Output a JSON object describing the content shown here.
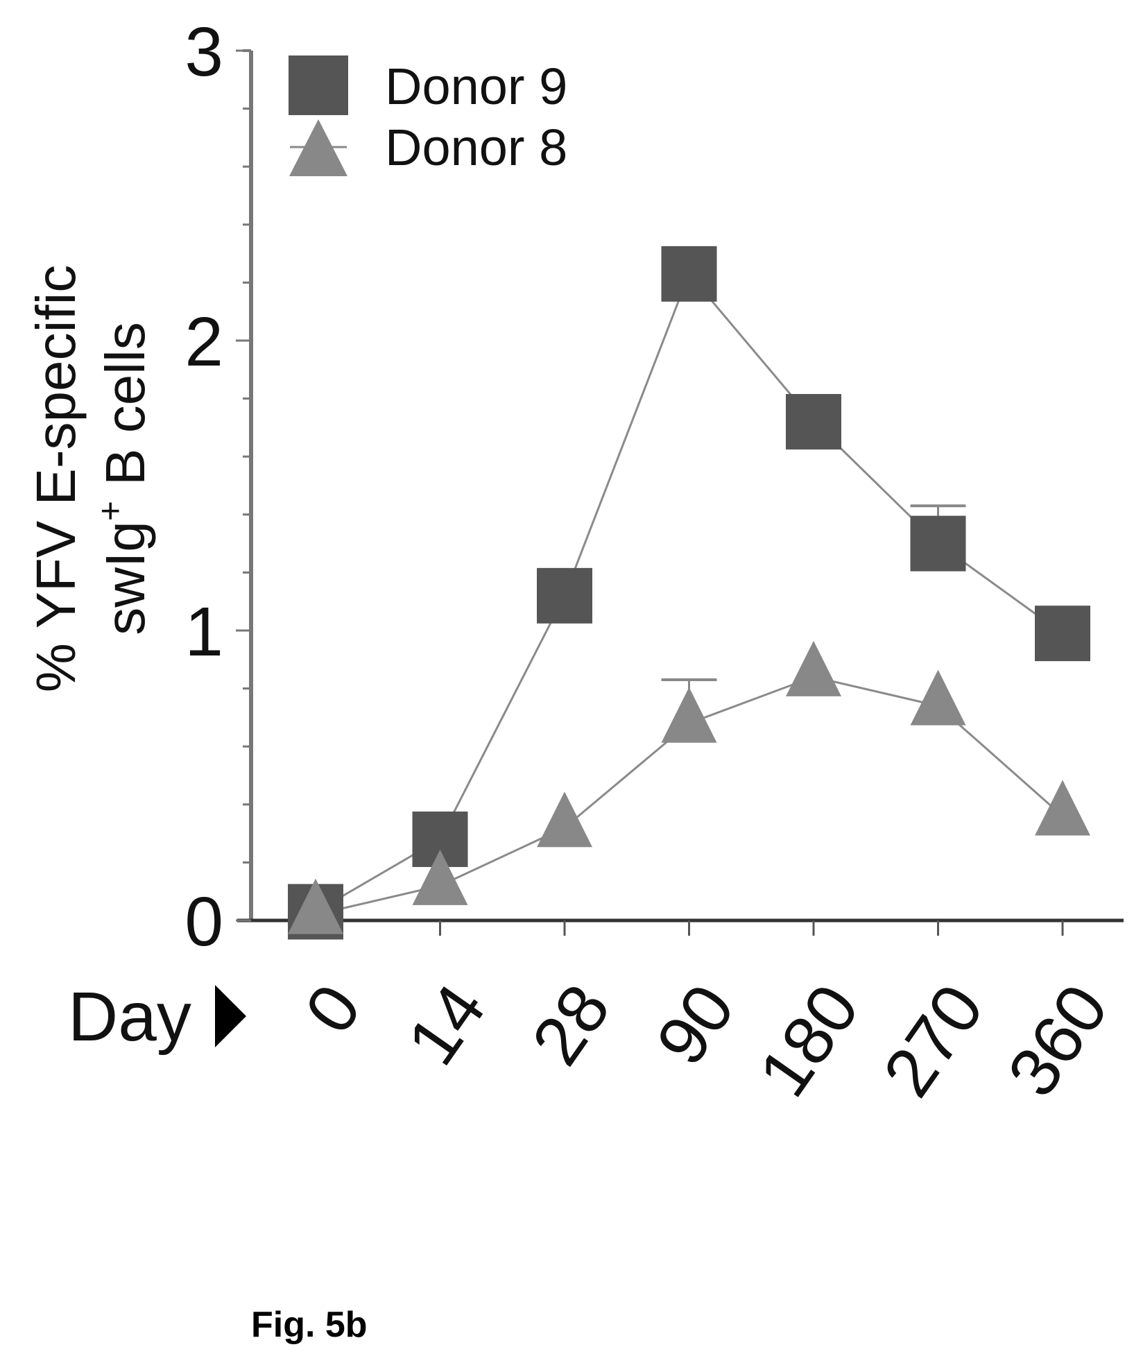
{
  "chart_data": {
    "type": "line",
    "title": "",
    "xlabel": "Day",
    "ylabel_line1": "% YFV E-specific",
    "ylabel_line2_main": "swIg",
    "ylabel_line2_sup": "+",
    "ylabel_line2_tail": " B cells",
    "categories": [
      "0",
      "14",
      "28",
      "90",
      "180",
      "270",
      "360"
    ],
    "ylim": [
      0,
      3
    ],
    "yticks": [
      "0",
      "1",
      "2",
      "3"
    ],
    "grid": false,
    "legend_position": "top-left",
    "series": [
      {
        "name": "Donor 9",
        "marker": "square",
        "color": "#555555",
        "values": [
          0.03,
          0.28,
          1.12,
          2.23,
          1.72,
          1.3,
          0.99
        ],
        "error_upper": [
          null,
          null,
          null,
          null,
          null,
          1.43,
          null
        ]
      },
      {
        "name": "Donor 8",
        "marker": "triangle",
        "color": "#888888",
        "values": [
          0.02,
          0.12,
          0.32,
          0.68,
          0.84,
          0.74,
          0.36
        ],
        "error_upper": [
          null,
          null,
          null,
          0.83,
          null,
          null,
          null
        ]
      }
    ],
    "line_color": "#8a8a8a"
  },
  "caption": "Fig. 5b"
}
